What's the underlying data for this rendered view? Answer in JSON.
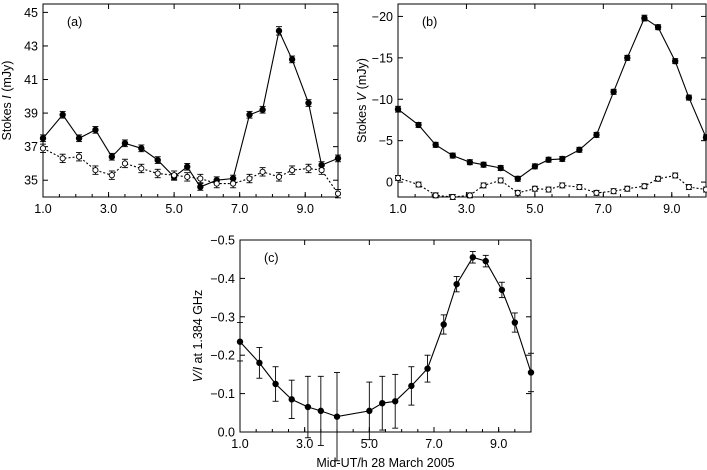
{
  "chart_data": [
    {
      "type": "line",
      "panel_label": "(a)",
      "ylabel_prefix": "Stokes ",
      "ylabel_italic": "I",
      "ylabel_suffix": " (mJy)",
      "xlabel": "",
      "xlim": [
        1.0,
        10.0
      ],
      "ylim": [
        34.0,
        45.5
      ],
      "y_inverted": false,
      "xticks": [
        1.0,
        3.0,
        5.0,
        7.0,
        9.0
      ],
      "xtick_labels": [
        "1.0",
        "3.0",
        "5.0",
        "7.0",
        "9.0"
      ],
      "yticks": [
        35,
        37,
        39,
        41,
        43,
        45
      ],
      "ytick_labels": [
        "35",
        "37",
        "39",
        "41",
        "43",
        "45"
      ],
      "series": [
        {
          "style": "solid",
          "marker": "filled",
          "x": [
            1.0,
            1.6,
            2.1,
            2.6,
            3.1,
            3.5,
            4.0,
            4.5,
            5.0,
            5.4,
            5.8,
            6.3,
            6.8,
            7.3,
            7.7,
            8.2,
            8.6,
            9.1,
            9.5,
            10.0
          ],
          "y": [
            37.5,
            38.9,
            37.5,
            38.0,
            36.4,
            37.2,
            36.9,
            36.2,
            35.2,
            35.8,
            34.6,
            35.0,
            35.1,
            38.9,
            39.2,
            43.9,
            42.2,
            39.6,
            35.9,
            36.3
          ],
          "err": [
            0.2,
            0.2,
            0.2,
            0.2,
            0.2,
            0.2,
            0.2,
            0.2,
            0.2,
            0.2,
            0.2,
            0.2,
            0.2,
            0.2,
            0.2,
            0.25,
            0.2,
            0.2,
            0.2,
            0.2
          ]
        },
        {
          "style": "dotted",
          "marker": "open",
          "x": [
            1.0,
            1.6,
            2.1,
            2.6,
            3.1,
            3.5,
            4.0,
            4.5,
            5.0,
            5.4,
            5.8,
            6.3,
            6.8,
            7.3,
            7.7,
            8.2,
            8.6,
            9.1,
            9.5,
            10.0
          ],
          "y": [
            36.9,
            36.3,
            36.4,
            35.6,
            35.3,
            36.0,
            35.7,
            35.4,
            35.3,
            35.2,
            35.1,
            34.8,
            34.8,
            35.1,
            35.5,
            35.2,
            35.6,
            35.7,
            35.6,
            34.2
          ],
          "err": [
            0.25,
            0.25,
            0.25,
            0.25,
            0.25,
            0.25,
            0.25,
            0.25,
            0.25,
            0.25,
            0.25,
            0.25,
            0.25,
            0.25,
            0.25,
            0.25,
            0.25,
            0.25,
            0.25,
            0.25
          ]
        }
      ]
    },
    {
      "type": "line",
      "panel_label": "(b)",
      "ylabel_prefix": "Stokes ",
      "ylabel_italic": "V",
      "ylabel_suffix": " (mJy)",
      "xlabel": "",
      "xlim": [
        1.0,
        10.0
      ],
      "ylim": [
        1.8,
        -21.5
      ],
      "y_inverted": true,
      "xticks": [
        1.0,
        3.0,
        5.0,
        7.0,
        9.0
      ],
      "xtick_labels": [
        "1.0",
        "3.0",
        "5.0",
        "7.0",
        "9.0"
      ],
      "yticks": [
        0,
        -5,
        -10,
        -15,
        -20
      ],
      "ytick_labels": [
        "0",
        "−5",
        "−10",
        "−15",
        "−20"
      ],
      "series": [
        {
          "style": "solid",
          "marker": "filled",
          "x": [
            1.0,
            1.6,
            2.1,
            2.6,
            3.1,
            3.5,
            4.0,
            4.5,
            5.0,
            5.4,
            5.8,
            6.3,
            6.8,
            7.3,
            7.7,
            8.2,
            8.6,
            9.1,
            9.5,
            10.0
          ],
          "y": [
            -8.8,
            -6.9,
            -4.5,
            -3.2,
            -2.4,
            -2.1,
            -1.7,
            -0.4,
            -1.9,
            -2.7,
            -2.8,
            -3.9,
            -5.7,
            -10.9,
            -15.0,
            -19.8,
            -18.7,
            -14.6,
            -10.2,
            -5.4
          ],
          "err": [
            0.35,
            0.3,
            0.3,
            0.3,
            0.3,
            0.3,
            0.3,
            0.3,
            0.3,
            0.3,
            0.3,
            0.3,
            0.3,
            0.3,
            0.3,
            0.35,
            0.3,
            0.3,
            0.3,
            0.3
          ]
        },
        {
          "style": "dotted",
          "marker": "open",
          "x": [
            1.0,
            1.6,
            2.1,
            2.6,
            3.1,
            3.5,
            4.0,
            4.5,
            5.0,
            5.4,
            5.8,
            6.3,
            6.8,
            7.3,
            7.7,
            8.2,
            8.6,
            9.1,
            9.5,
            10.0
          ],
          "y": [
            -0.5,
            0.3,
            1.6,
            1.8,
            1.6,
            0.4,
            -0.2,
            1.3,
            0.8,
            0.9,
            0.4,
            0.6,
            1.3,
            1.1,
            0.8,
            0.5,
            -0.4,
            -0.8,
            0.6,
            0.9
          ],
          "err": [
            0.3,
            0.3,
            0.3,
            0.3,
            0.3,
            0.3,
            0.3,
            0.3,
            0.3,
            0.3,
            0.3,
            0.3,
            0.3,
            0.3,
            0.3,
            0.3,
            0.3,
            0.3,
            0.3,
            0.3
          ]
        }
      ]
    },
    {
      "type": "line",
      "panel_label": "(c)",
      "ylabel_prefix": "",
      "ylabel_italic": "V/I",
      "ylabel_suffix": " at 1.384 GHz",
      "xlabel": "Mid-UT/h 28 March 2005",
      "xlim": [
        1.0,
        10.0
      ],
      "ylim": [
        0.0,
        -0.5
      ],
      "y_inverted": true,
      "xticks": [
        1.0,
        3.0,
        5.0,
        7.0,
        9.0
      ],
      "xtick_labels": [
        "1.0",
        "3.0",
        "5.0",
        "7.0",
        "9.0"
      ],
      "yticks": [
        0.0,
        -0.1,
        -0.2,
        -0.3,
        -0.4,
        -0.5
      ],
      "ytick_labels": [
        "0.0",
        "−0.1",
        "−0.2",
        "−0.3",
        "−0.4",
        "−0.5"
      ],
      "series": [
        {
          "style": "solid",
          "marker": "filled",
          "x": [
            1.0,
            1.6,
            2.1,
            2.6,
            3.1,
            3.5,
            4.0,
            5.0,
            5.4,
            5.8,
            6.3,
            6.8,
            7.3,
            7.7,
            8.2,
            8.6,
            9.1,
            9.5,
            10.0
          ],
          "y": [
            -0.235,
            -0.18,
            -0.125,
            -0.085,
            -0.065,
            -0.055,
            -0.04,
            -0.055,
            -0.075,
            -0.08,
            -0.12,
            -0.165,
            -0.28,
            -0.385,
            -0.455,
            -0.445,
            -0.37,
            -0.285,
            -0.155
          ],
          "err": [
            0.05,
            0.04,
            0.045,
            0.05,
            0.08,
            0.09,
            0.115,
            0.075,
            0.07,
            0.07,
            0.05,
            0.035,
            0.025,
            0.02,
            0.015,
            0.015,
            0.02,
            0.025,
            0.05
          ]
        }
      ]
    }
  ]
}
